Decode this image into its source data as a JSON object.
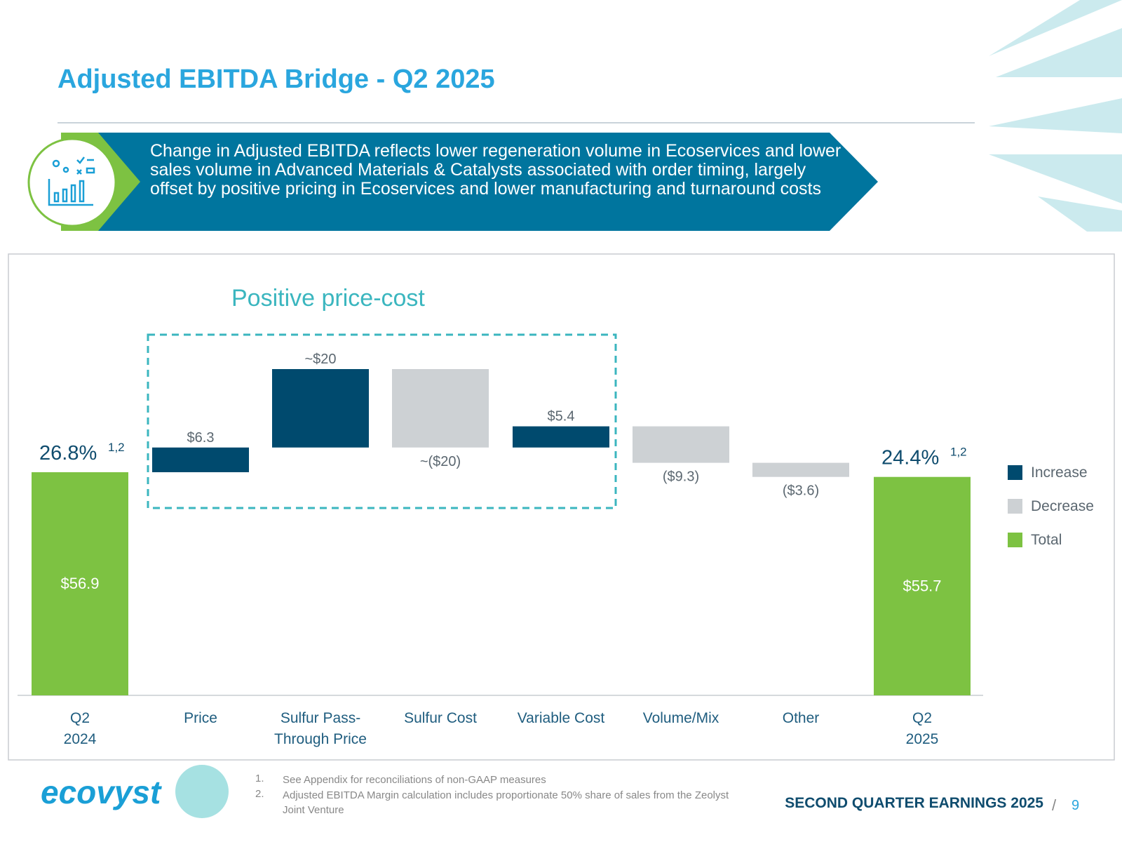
{
  "chart_data": {
    "type": "waterfall",
    "title": "Adjusted EBITDA Bridge - Q2 2025",
    "callout": "Change in Adjusted EBITDA reflects lower regeneration volume in Ecoservices and lower sales volume in Advanced Materials & Catalysts associated with order timing, largely offset by positive pricing in Ecoservices and lower manufacturing and turnaround costs",
    "annotation": "Positive price-cost",
    "categories": [
      "Q2\n2024",
      "Price",
      "Sulfur Pass-\nThrough Price",
      "Sulfur Cost",
      "Variable Cost",
      "Volume/Mix",
      "Other",
      "Q2\n2025"
    ],
    "values": [
      56.9,
      6.3,
      20,
      -20,
      5.4,
      -9.3,
      -3.6,
      55.7
    ],
    "value_labels": [
      "$56.9",
      "$6.3",
      "~$20",
      "~($20)",
      "$5.4",
      "($9.3)",
      "($3.6)",
      "$55.7"
    ],
    "kinds": [
      "Total",
      "Increase",
      "Increase",
      "Decrease",
      "Increase",
      "Decrease",
      "Decrease",
      "Total"
    ],
    "series": [
      {
        "name": "Increase",
        "color": "#004a6e"
      },
      {
        "name": "Decrease",
        "color": "#cdd1d4"
      },
      {
        "name": "Total",
        "color": "#7dc242"
      }
    ],
    "margins": [
      {
        "label": "26.8%",
        "note": "1,2"
      },
      null,
      null,
      null,
      null,
      null,
      null,
      {
        "label": "24.4%",
        "note": "1,2"
      }
    ],
    "footnotes": [
      "See Appendix for reconciliations of non-GAAP measures",
      "Adjusted EBITDA Margin calculation includes proportionate 50% share of sales from the Zeolyst Joint Venture"
    ]
  },
  "footer": {
    "brand": "ecovyst",
    "text": "SECOND QUARTER EARNINGS 2025",
    "page": "9"
  }
}
